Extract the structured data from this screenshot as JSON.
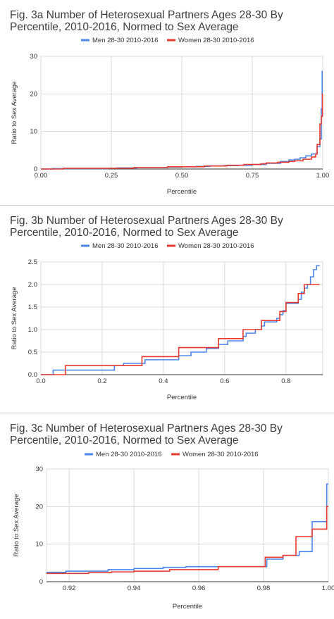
{
  "colors": {
    "men": "#4a86e8",
    "women": "#e8392e",
    "grid": "#d9d9d9",
    "axis": "#333333"
  },
  "chart_data": [
    {
      "type": "line",
      "title_line1": "Fig. 3a Number of Heterosexual Partners Ages 28-30 By",
      "title_line2": "Percentile, 2010-2016, Normed to Sex Average",
      "xlabel": "Percentile",
      "ylabel": "Ratio to Sex Average",
      "xlim": [
        0,
        1
      ],
      "ylim": [
        0,
        30
      ],
      "xticks": [
        0,
        0.25,
        0.5,
        0.75,
        1
      ],
      "xtick_labels": [
        "0.00",
        "0.25",
        "0.50",
        "0.75",
        "1.00"
      ],
      "yticks": [
        0,
        10,
        20,
        30
      ],
      "ytick_labels": [
        "0",
        "10",
        "20",
        "30"
      ],
      "grid": true,
      "legend": "top",
      "series": [
        {
          "name": "Men 28-30 2010-2016",
          "color": "#4a86e8",
          "points": [
            [
              0,
              0
            ],
            [
              0.04,
              0.1
            ],
            [
              0.24,
              0.2
            ],
            [
              0.27,
              0.3
            ],
            [
              0.34,
              0.4
            ],
            [
              0.45,
              0.5
            ],
            [
              0.5,
              0.6
            ],
            [
              0.55,
              0.7
            ],
            [
              0.6,
              0.8
            ],
            [
              0.65,
              0.9
            ],
            [
              0.7,
              1.0
            ],
            [
              0.75,
              1.2
            ],
            [
              0.8,
              1.5
            ],
            [
              0.85,
              2.0
            ],
            [
              0.88,
              2.4
            ],
            [
              0.9,
              2.6
            ],
            [
              0.92,
              3.0
            ],
            [
              0.94,
              3.5
            ],
            [
              0.96,
              4.0
            ],
            [
              0.98,
              6.0
            ],
            [
              0.99,
              8.0
            ],
            [
              0.995,
              16.0
            ],
            [
              0.998,
              26.0
            ],
            [
              1.0,
              26.0
            ]
          ]
        },
        {
          "name": "Women 28-30 2010-2016",
          "color": "#e8392e",
          "points": [
            [
              0,
              0
            ],
            [
              0.08,
              0.2
            ],
            [
              0.33,
              0.4
            ],
            [
              0.45,
              0.6
            ],
            [
              0.58,
              0.8
            ],
            [
              0.66,
              1.0
            ],
            [
              0.72,
              1.2
            ],
            [
              0.78,
              1.4
            ],
            [
              0.8,
              1.6
            ],
            [
              0.84,
              1.8
            ],
            [
              0.88,
              2.0
            ],
            [
              0.9,
              2.2
            ],
            [
              0.93,
              2.6
            ],
            [
              0.96,
              3.2
            ],
            [
              0.975,
              4.0
            ],
            [
              0.98,
              6.5
            ],
            [
              0.99,
              12.0
            ],
            [
              0.995,
              14.0
            ],
            [
              0.999,
              20.0
            ],
            [
              1.0,
              20.0
            ]
          ]
        }
      ]
    },
    {
      "type": "line",
      "title_line1": "Fig. 3b Number of Heterosexual Partners Ages 28-30 By",
      "title_line2": "Percentile, 2010-2016, Normed to Sex Average",
      "xlabel": "Percentile",
      "ylabel": "Ratio to Sex Average",
      "xlim": [
        0,
        0.92
      ],
      "ylim": [
        0,
        2.5
      ],
      "xticks": [
        0,
        0.2,
        0.4,
        0.6,
        0.8
      ],
      "xtick_labels": [
        "0.0",
        "0.2",
        "0.4",
        "0.6",
        "0.8"
      ],
      "yticks": [
        0,
        0.5,
        1.0,
        1.5,
        2.0,
        2.5
      ],
      "ytick_labels": [
        "0.0",
        "0.5",
        "1.0",
        "1.5",
        "2.0",
        "2.5"
      ],
      "grid": true,
      "legend": "top",
      "series": [
        {
          "name": "Men 28-30 2010-2016",
          "color": "#4a86e8",
          "points": [
            [
              0,
              0
            ],
            [
              0.04,
              0.1
            ],
            [
              0.24,
              0.2
            ],
            [
              0.27,
              0.25
            ],
            [
              0.34,
              0.33
            ],
            [
              0.45,
              0.42
            ],
            [
              0.49,
              0.5
            ],
            [
              0.54,
              0.58
            ],
            [
              0.58,
              0.67
            ],
            [
              0.61,
              0.75
            ],
            [
              0.66,
              0.85
            ],
            [
              0.67,
              0.92
            ],
            [
              0.7,
              1.0
            ],
            [
              0.72,
              1.08
            ],
            [
              0.73,
              1.17
            ],
            [
              0.77,
              1.25
            ],
            [
              0.78,
              1.33
            ],
            [
              0.79,
              1.42
            ],
            [
              0.8,
              1.58
            ],
            [
              0.84,
              1.67
            ],
            [
              0.85,
              1.83
            ],
            [
              0.86,
              1.92
            ],
            [
              0.87,
              2.0
            ],
            [
              0.88,
              2.17
            ],
            [
              0.89,
              2.33
            ],
            [
              0.9,
              2.42
            ],
            [
              0.91,
              2.42
            ]
          ]
        },
        {
          "name": "Women 28-30 2010-2016",
          "color": "#e8392e",
          "points": [
            [
              0,
              0
            ],
            [
              0.08,
              0.2
            ],
            [
              0.33,
              0.4
            ],
            [
              0.45,
              0.6
            ],
            [
              0.58,
              0.8
            ],
            [
              0.66,
              1.0
            ],
            [
              0.72,
              1.2
            ],
            [
              0.78,
              1.4
            ],
            [
              0.8,
              1.6
            ],
            [
              0.84,
              1.8
            ],
            [
              0.86,
              2.0
            ],
            [
              0.91,
              2.0
            ]
          ]
        }
      ]
    },
    {
      "type": "line",
      "title_line1": "Fig. 3c Number of Heterosexual Partners Ages 28-30 By",
      "title_line2": "Percentile, 2010-2016, Normed to Sex Average",
      "xlabel": "Percentile",
      "ylabel": "Ratio to Sex Average",
      "xlim": [
        0.913,
        1.0
      ],
      "ylim": [
        0,
        30
      ],
      "xticks": [
        0.92,
        0.94,
        0.96,
        0.98,
        1.0
      ],
      "xtick_labels": [
        "0.92",
        "0.94",
        "0.96",
        "0.98",
        "1.00"
      ],
      "yticks": [
        0,
        10,
        20,
        30
      ],
      "ytick_labels": [
        "0",
        "10",
        "20",
        "30"
      ],
      "grid": true,
      "legend": "top",
      "series": [
        {
          "name": "Men 28-30 2010-2016",
          "color": "#4a86e8",
          "points": [
            [
              0.913,
              2.5
            ],
            [
              0.919,
              2.8
            ],
            [
              0.932,
              3.2
            ],
            [
              0.94,
              3.5
            ],
            [
              0.949,
              3.8
            ],
            [
              0.956,
              4.0
            ],
            [
              0.966,
              4.0
            ],
            [
              0.981,
              6.0
            ],
            [
              0.986,
              7.0
            ],
            [
              0.991,
              8.0
            ],
            [
              0.995,
              16.0
            ],
            [
              0.9995,
              26.0
            ],
            [
              1.0,
              26.0
            ]
          ]
        },
        {
          "name": "Women 28-30 2010-2016",
          "color": "#e8392e",
          "points": [
            [
              0.913,
              2.2
            ],
            [
              0.926,
              2.4
            ],
            [
              0.933,
              2.6
            ],
            [
              0.94,
              2.8
            ],
            [
              0.951,
              3.2
            ],
            [
              0.966,
              4.0
            ],
            [
              0.98,
              4.0
            ],
            [
              0.9805,
              6.5
            ],
            [
              0.986,
              7.0
            ],
            [
              0.99,
              12.0
            ],
            [
              0.995,
              14.0
            ],
            [
              0.9995,
              20.0
            ],
            [
              1.0,
              20.0
            ]
          ]
        }
      ]
    }
  ]
}
